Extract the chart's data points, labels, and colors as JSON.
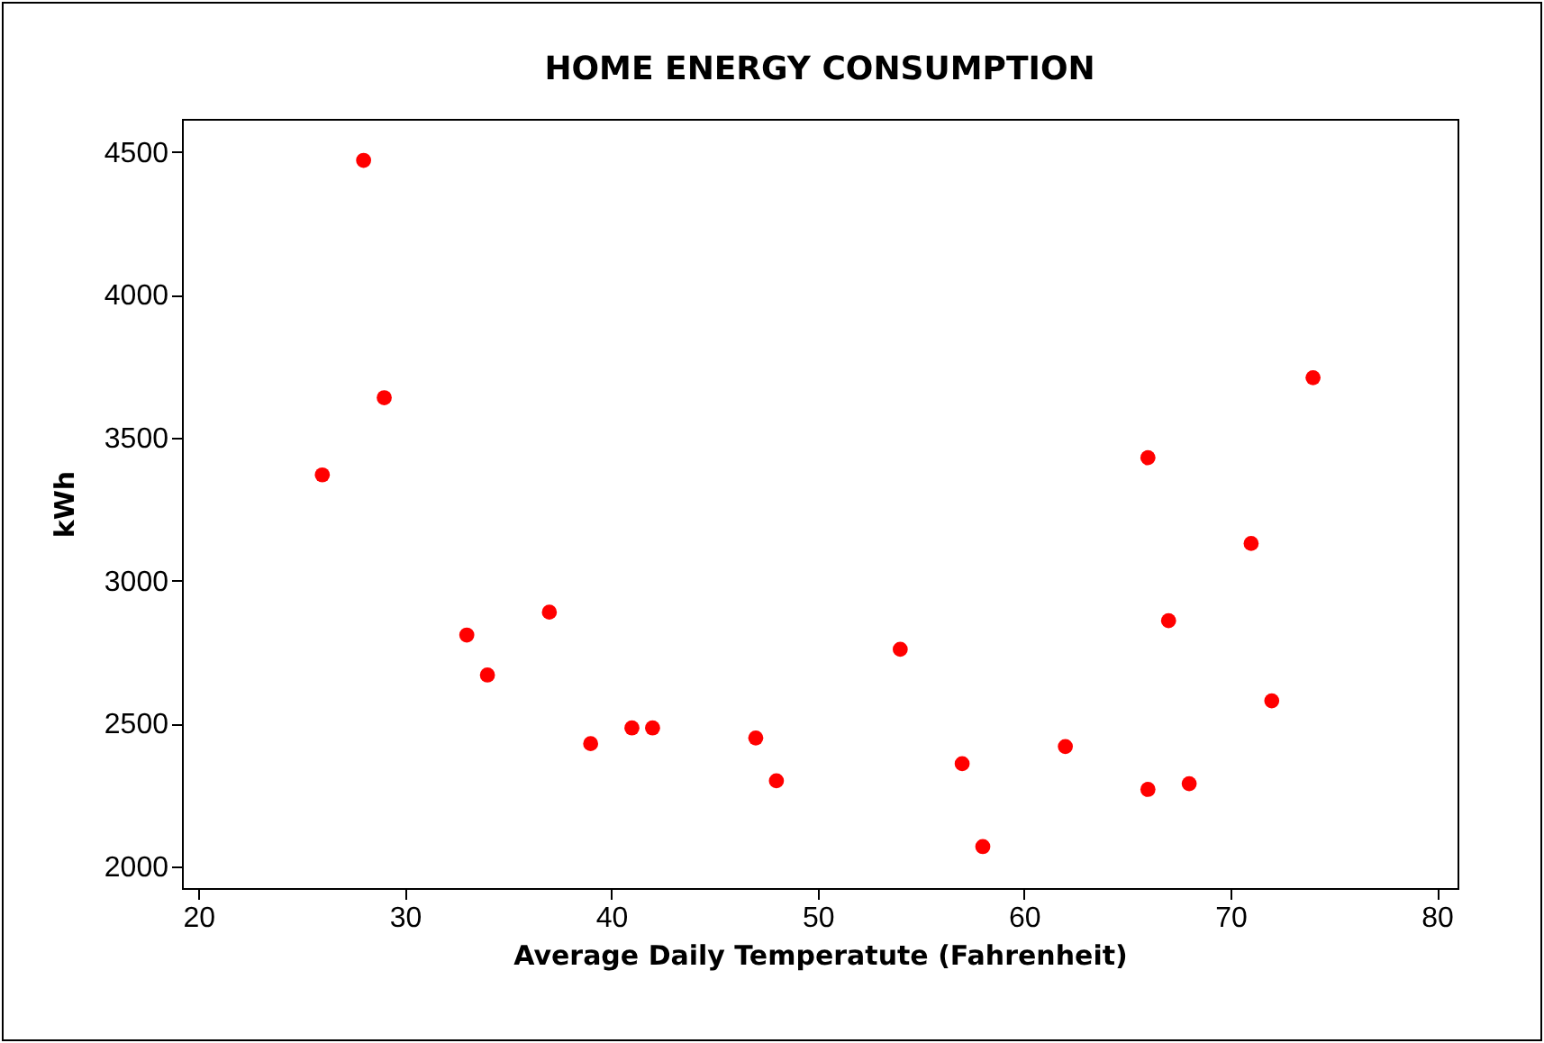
{
  "chart_data": {
    "type": "scatter",
    "title": "HOME ENERGY CONSUMPTION",
    "xlabel": "Average Daily Temperatute (Fahrenheit)",
    "ylabel": "kWh",
    "x": [
      26,
      28,
      29,
      33,
      34,
      37,
      39,
      41,
      42,
      47,
      48,
      54,
      57,
      58,
      62,
      66,
      66,
      67,
      68,
      71,
      72,
      74
    ],
    "series": [
      {
        "color": "#ff0000",
        "values": [
          3370,
          4470,
          3640,
          2810,
          2670,
          2890,
          2430,
          2485,
          2485,
          2450,
          2300,
          2760,
          2360,
          2070,
          2420,
          3430,
          2270,
          2860,
          2290,
          3130,
          2580,
          3710
        ]
      }
    ],
    "xlim": [
      19.2,
      81
    ],
    "xticks": [
      20,
      30,
      40,
      50,
      60,
      70,
      80
    ],
    "ylim": [
      1925,
      4615
    ],
    "yticks": [
      2000,
      2500,
      3000,
      3500,
      4000,
      4500
    ],
    "marker": "circle",
    "grid": false
  }
}
